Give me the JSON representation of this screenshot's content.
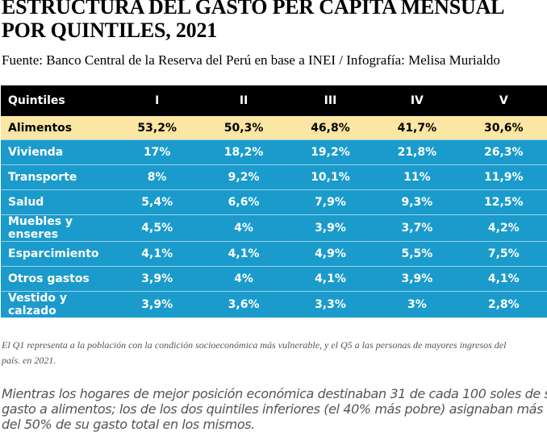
{
  "header": {
    "title_line1": "ESTRUCTURA DEL GASTO PER CAPITA MENSUAL",
    "title_line2": "POR QUINTILES, 2021",
    "source": "Fuente: Banco Central de la Reserva del Perú en base a INEI / Infografía: Melisa Murialdo"
  },
  "table": {
    "headers": [
      "Quintiles",
      "I",
      "II",
      "III",
      "IV",
      "V"
    ],
    "rows": [
      {
        "label": "Alimentos",
        "values": [
          "53,2%",
          "50,3%",
          "46,8%",
          "41,7%",
          "30,6%"
        ]
      },
      {
        "label": "Vivienda",
        "values": [
          "17%",
          "18,2%",
          "19,2%",
          "21,8%",
          "26,3%"
        ]
      },
      {
        "label": "Transporte",
        "values": [
          "8%",
          "9,2%",
          "10,1%",
          "11%",
          "11,9%"
        ]
      },
      {
        "label": "Salud",
        "values": [
          "5,4%",
          "6,6%",
          "7,9%",
          "9,3%",
          "12,5%"
        ]
      },
      {
        "label": "Muebles y enseres",
        "values": [
          "4,5%",
          "4%",
          "3,9%",
          "3,7%",
          "4,2%"
        ]
      },
      {
        "label": "Esparcimiento",
        "values": [
          "4,1%",
          "4,1%",
          "4,9%",
          "5,5%",
          "7,5%"
        ]
      },
      {
        "label": "Otros gastos",
        "values": [
          "3,9%",
          "4%",
          "4,1%",
          "3,9%",
          "4,1%"
        ]
      },
      {
        "label": "Vestido y calzado",
        "values": [
          "3,9%",
          "3,6%",
          "3,3%",
          "3%",
          "2,8%"
        ]
      }
    ]
  },
  "note_line1": "El Q1 representa a la población con la condición socioeconómica más vulnerable, y el Q5 a las personas de mayores ingresos del",
  "note_line2": "país. en 2021.",
  "summary_line1": "Mientras los hogares de mejor posición económica destinaban 31 de cada 100 soles de su",
  "summary_line2": "gasto a alimentos; los de los dos quintiles inferiores (el 40% más pobre) asignaban más",
  "summary_line3": "del 50% de su gasto total en los mismos.",
  "colors": {
    "header_bg": "#000000",
    "highlight_row": "#fbe6a3",
    "row_bg": "#1a9bcc"
  }
}
